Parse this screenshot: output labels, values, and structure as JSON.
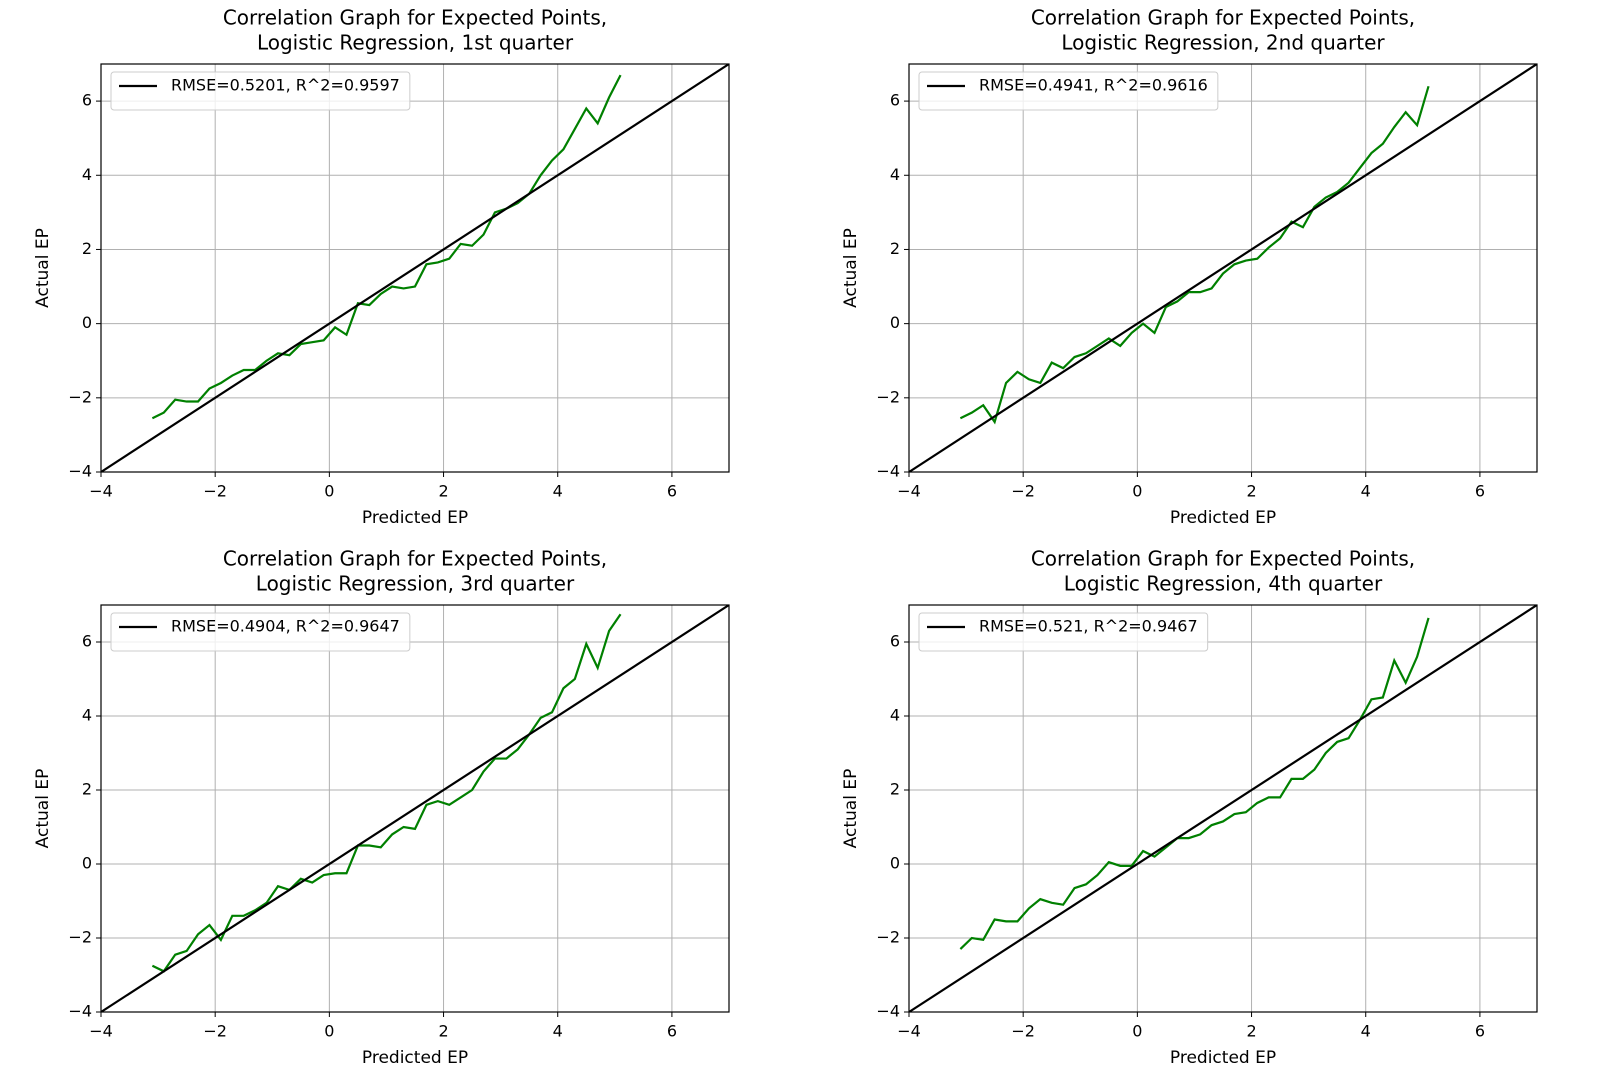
{
  "chart_data": [
    {
      "type": "line",
      "title": [
        "Correlation Graph for Expected Points,",
        "Logistic Regression, 1st quarter"
      ],
      "xlabel": "Predicted EP",
      "ylabel": "Actual EP",
      "grid": true,
      "legend": "upper left",
      "xlim": [
        -4,
        7
      ],
      "ylim": [
        -4,
        7
      ],
      "xticks": [
        {
          "value": -4,
          "label": "−4"
        },
        {
          "value": -2,
          "label": "−2"
        },
        0,
        2,
        4,
        6
      ],
      "yticks": [
        {
          "value": -4,
          "label": "−4"
        },
        {
          "value": -2,
          "label": "−2"
        },
        0,
        2,
        4,
        6
      ],
      "series": [
        {
          "color": "#008000",
          "x": [
            -3.1,
            -2.9,
            -2.7,
            -2.5,
            -2.3,
            -2.1,
            -1.9,
            -1.7,
            -1.5,
            -1.3,
            -1.1,
            -0.9,
            -0.7,
            -0.5,
            -0.3,
            -0.1,
            0.1,
            0.3,
            0.5,
            0.7,
            0.9,
            1.1,
            1.3,
            1.5,
            1.7,
            1.9,
            2.1,
            2.3,
            2.5,
            2.7,
            2.9,
            3.1,
            3.3,
            3.5,
            3.7,
            3.9,
            4.1,
            4.3,
            4.5,
            4.7,
            4.9,
            5.1
          ],
          "values": [
            -2.55,
            -2.4,
            -2.05,
            -2.1,
            -2.1,
            -1.75,
            -1.6,
            -1.4,
            -1.25,
            -1.25,
            -1.0,
            -0.8,
            -0.85,
            -0.55,
            -0.5,
            -0.45,
            -0.1,
            -0.3,
            0.55,
            0.5,
            0.8,
            1.0,
            0.95,
            1.0,
            1.6,
            1.65,
            1.75,
            2.15,
            2.1,
            2.4,
            3.0,
            3.1,
            3.25,
            3.5,
            4.0,
            4.4,
            4.7,
            5.25,
            5.8,
            5.4,
            6.1,
            6.7
          ]
        },
        {
          "name": "RMSE=0.5201, R^2=0.9597",
          "color": "#000000",
          "x": [
            -4,
            7
          ],
          "values": [
            -4,
            7
          ]
        }
      ]
    },
    {
      "type": "line",
      "title": [
        "Correlation Graph for Expected Points,",
        "Logistic Regression, 2nd quarter"
      ],
      "xlabel": "Predicted EP",
      "ylabel": "Actual EP",
      "grid": true,
      "legend": "upper left",
      "xlim": [
        -4,
        7
      ],
      "ylim": [
        -4,
        7
      ],
      "xticks": [
        {
          "value": -4,
          "label": "−4"
        },
        {
          "value": -2,
          "label": "−2"
        },
        0,
        2,
        4,
        6
      ],
      "yticks": [
        {
          "value": -4,
          "label": "−4"
        },
        {
          "value": -2,
          "label": "−2"
        },
        0,
        2,
        4,
        6
      ],
      "series": [
        {
          "color": "#008000",
          "x": [
            -3.1,
            -2.9,
            -2.7,
            -2.5,
            -2.3,
            -2.1,
            -1.9,
            -1.7,
            -1.5,
            -1.3,
            -1.1,
            -0.9,
            -0.7,
            -0.5,
            -0.3,
            -0.1,
            0.1,
            0.3,
            0.5,
            0.7,
            0.9,
            1.1,
            1.3,
            1.5,
            1.7,
            1.9,
            2.1,
            2.3,
            2.5,
            2.7,
            2.9,
            3.1,
            3.3,
            3.5,
            3.7,
            3.9,
            4.1,
            4.3,
            4.5,
            4.7,
            4.9,
            5.1
          ],
          "values": [
            -2.55,
            -2.4,
            -2.2,
            -2.65,
            -1.6,
            -1.3,
            -1.5,
            -1.6,
            -1.05,
            -1.2,
            -0.9,
            -0.8,
            -0.6,
            -0.4,
            -0.6,
            -0.25,
            0.0,
            -0.25,
            0.45,
            0.6,
            0.85,
            0.85,
            0.95,
            1.35,
            1.6,
            1.7,
            1.75,
            2.05,
            2.3,
            2.75,
            2.6,
            3.15,
            3.4,
            3.55,
            3.8,
            4.2,
            4.6,
            4.85,
            5.3,
            5.7,
            5.35,
            6.4
          ]
        },
        {
          "name": "RMSE=0.4941, R^2=0.9616",
          "color": "#000000",
          "x": [
            -4,
            7
          ],
          "values": [
            -4,
            7
          ]
        }
      ]
    },
    {
      "type": "line",
      "title": [
        "Correlation Graph for Expected Points,",
        "Logistic Regression, 3rd quarter"
      ],
      "xlabel": "Predicted EP",
      "ylabel": "Actual EP",
      "grid": true,
      "legend": "upper left",
      "xlim": [
        -4,
        7
      ],
      "ylim": [
        -4,
        7
      ],
      "xticks": [
        {
          "value": -4,
          "label": "−4"
        },
        {
          "value": -2,
          "label": "−2"
        },
        0,
        2,
        4,
        6
      ],
      "yticks": [
        {
          "value": -4,
          "label": "−4"
        },
        {
          "value": -2,
          "label": "−2"
        },
        0,
        2,
        4,
        6
      ],
      "series": [
        {
          "color": "#008000",
          "x": [
            -3.1,
            -2.9,
            -2.7,
            -2.5,
            -2.3,
            -2.1,
            -1.9,
            -1.7,
            -1.5,
            -1.3,
            -1.1,
            -0.9,
            -0.7,
            -0.5,
            -0.3,
            -0.1,
            0.1,
            0.3,
            0.5,
            0.7,
            0.9,
            1.1,
            1.3,
            1.5,
            1.7,
            1.9,
            2.1,
            2.3,
            2.5,
            2.7,
            2.9,
            3.1,
            3.3,
            3.5,
            3.7,
            3.9,
            4.1,
            4.3,
            4.5,
            4.7,
            4.9,
            5.1
          ],
          "values": [
            -2.75,
            -2.9,
            -2.45,
            -2.35,
            -1.9,
            -1.65,
            -2.05,
            -1.4,
            -1.4,
            -1.25,
            -1.05,
            -0.6,
            -0.7,
            -0.4,
            -0.5,
            -0.3,
            -0.25,
            -0.25,
            0.5,
            0.5,
            0.45,
            0.8,
            1.0,
            0.95,
            1.6,
            1.7,
            1.6,
            1.8,
            2.0,
            2.5,
            2.85,
            2.85,
            3.1,
            3.5,
            3.95,
            4.1,
            4.75,
            5.0,
            5.95,
            5.3,
            6.3,
            6.75
          ]
        },
        {
          "name": "RMSE=0.4904, R^2=0.9647",
          "color": "#000000",
          "x": [
            -4,
            7
          ],
          "values": [
            -4,
            7
          ]
        }
      ]
    },
    {
      "type": "line",
      "title": [
        "Correlation Graph for Expected Points,",
        "Logistic Regression, 4th quarter"
      ],
      "xlabel": "Predicted EP",
      "ylabel": "Actual EP",
      "grid": true,
      "legend": "upper left",
      "xlim": [
        -4,
        7
      ],
      "ylim": [
        -4,
        7
      ],
      "xticks": [
        {
          "value": -4,
          "label": "−4"
        },
        {
          "value": -2,
          "label": "−2"
        },
        0,
        2,
        4,
        6
      ],
      "yticks": [
        {
          "value": -4,
          "label": "−4"
        },
        {
          "value": -2,
          "label": "−2"
        },
        0,
        2,
        4,
        6
      ],
      "series": [
        {
          "color": "#008000",
          "x": [
            -3.1,
            -2.9,
            -2.7,
            -2.5,
            -2.3,
            -2.1,
            -1.9,
            -1.7,
            -1.5,
            -1.3,
            -1.1,
            -0.9,
            -0.7,
            -0.5,
            -0.3,
            -0.1,
            0.1,
            0.3,
            0.5,
            0.7,
            0.9,
            1.1,
            1.3,
            1.5,
            1.7,
            1.9,
            2.1,
            2.3,
            2.5,
            2.7,
            2.9,
            3.1,
            3.3,
            3.5,
            3.7,
            3.9,
            4.1,
            4.3,
            4.5,
            4.7,
            4.9,
            5.1
          ],
          "values": [
            -2.3,
            -2.0,
            -2.05,
            -1.5,
            -1.55,
            -1.55,
            -1.2,
            -0.95,
            -1.05,
            -1.1,
            -0.65,
            -0.55,
            -0.3,
            0.05,
            -0.05,
            -0.05,
            0.35,
            0.2,
            0.45,
            0.7,
            0.7,
            0.8,
            1.05,
            1.15,
            1.35,
            1.4,
            1.65,
            1.8,
            1.8,
            2.3,
            2.3,
            2.55,
            3.0,
            3.3,
            3.4,
            3.9,
            4.45,
            4.5,
            5.5,
            4.9,
            5.6,
            6.65
          ]
        },
        {
          "name": "RMSE=0.521, R^2=0.9467",
          "color": "#000000",
          "x": [
            -4,
            7
          ],
          "values": [
            -4,
            7
          ]
        }
      ]
    }
  ]
}
